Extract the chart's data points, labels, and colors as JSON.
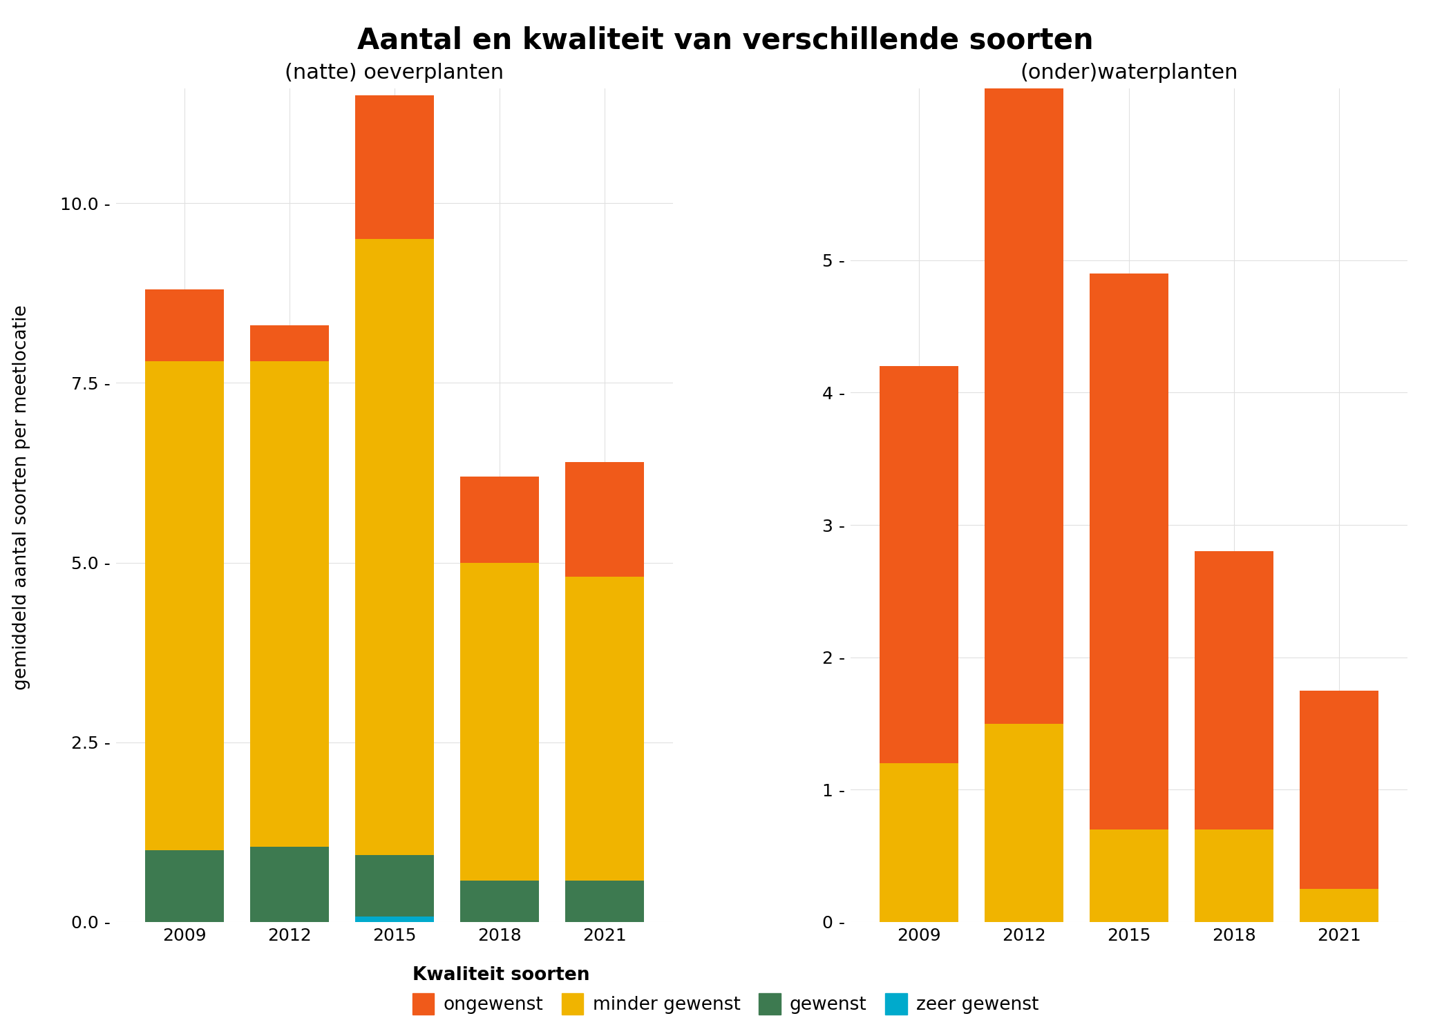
{
  "title": "Aantal en kwaliteit van verschillende soorten",
  "ylabel": "gemiddeld aantal soorten per meetlocatie",
  "left_subtitle": "(natte) oeverplanten",
  "right_subtitle": "(onder)waterplanten",
  "years": [
    "2009",
    "2012",
    "2015",
    "2018",
    "2021"
  ],
  "left_data": {
    "zeer_gewenst": [
      0.0,
      0.0,
      0.08,
      0.0,
      0.0
    ],
    "gewenst": [
      1.0,
      1.05,
      0.85,
      0.58,
      0.58
    ],
    "minder_gewenst": [
      6.8,
      6.75,
      8.57,
      4.42,
      4.22
    ],
    "ongewenst": [
      1.0,
      0.5,
      2.0,
      1.2,
      1.6
    ]
  },
  "right_data": {
    "zeer_gewenst": [
      0.0,
      0.0,
      0.0,
      0.0,
      0.0
    ],
    "gewenst": [
      0.0,
      0.0,
      0.0,
      0.0,
      0.0
    ],
    "minder_gewenst": [
      1.2,
      1.5,
      0.7,
      0.7,
      0.25
    ],
    "ongewenst": [
      3.0,
      4.8,
      4.2,
      2.1,
      1.5
    ]
  },
  "colors": {
    "ongewenst": "#F05A1A",
    "minder_gewenst": "#F0B400",
    "gewenst": "#3D7A50",
    "zeer_gewenst": "#00AACC"
  },
  "legend_labels": {
    "ongewenst": "ongewenst",
    "minder_gewenst": "minder gewenst",
    "gewenst": "gewenst",
    "zeer_gewenst": "zeer gewenst"
  },
  "left_ytick_vals": [
    0.0,
    2.5,
    5.0,
    7.5,
    10.0
  ],
  "left_ytick_labels": [
    "0.0 -",
    "2.5 -",
    "5.0 -",
    "7.5 -",
    "10.0 -"
  ],
  "right_ytick_vals": [
    0,
    1,
    2,
    3,
    4,
    5
  ],
  "right_ytick_labels": [
    "0 -",
    "1 -",
    "2 -",
    "3 -",
    "4 -",
    "5 -"
  ],
  "left_ylim": [
    0,
    11.6
  ],
  "right_ylim": [
    0,
    6.3
  ],
  "bar_width": 0.75,
  "background_color": "#FFFFFF",
  "grid_color": "#E0E0E0",
  "title_fontsize": 30,
  "subtitle_fontsize": 22,
  "tick_fontsize": 18,
  "legend_fontsize": 19,
  "ylabel_fontsize": 19
}
